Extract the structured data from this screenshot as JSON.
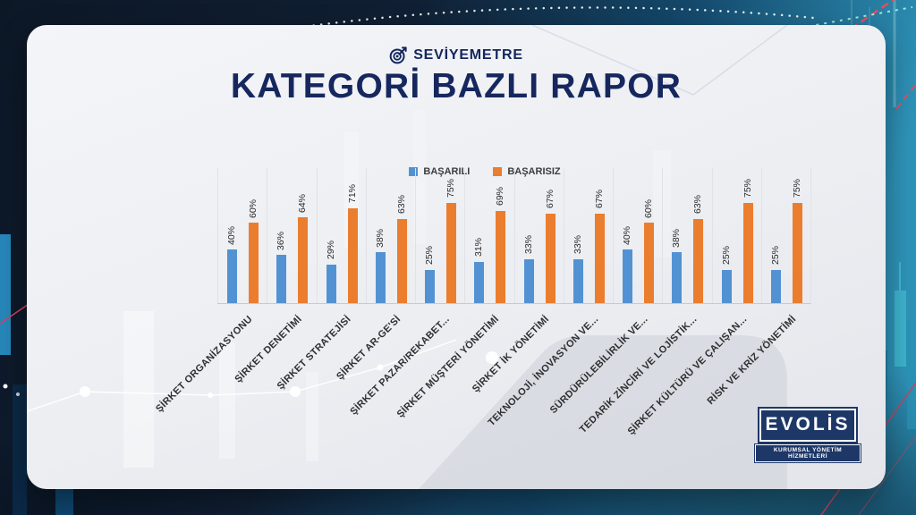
{
  "header": {
    "brand": "SEVİYEMETRE",
    "title": "KATEGORİ BAZLI RAPOR"
  },
  "chart_data": {
    "type": "bar",
    "title": "KATEGORİ BAZLI RAPOR",
    "categories": [
      "ŞİRKET ORGANİZASYONU",
      "ŞİRKET DENETİMİ",
      "ŞİRKET STRATEJİSİ",
      "ŞİRKET AR-GE'Sİ",
      "ŞİRKET PAZAR/REKABET...",
      "ŞİRKET MÜŞTERİ YÖNETİMİ",
      "ŞİRKET İK YÖNETİMİ",
      "TEKNOLOJİ, İNOVASYON VE...",
      "SÜRDÜRÜLEBİLİRLİK VE...",
      "TEDARİK ZİNCİRİ VE LOJİSTİK...",
      "ŞİRKET KÜLTÜRÜ VE ÇALIŞAN...",
      "RİSK VE KRİZ YÖNETİMİ"
    ],
    "series": [
      {
        "name": "BAŞARILI",
        "color": "#5292d3",
        "values": [
          40,
          36,
          29,
          38,
          25,
          31,
          33,
          33,
          40,
          38,
          25,
          25
        ]
      },
      {
        "name": "BAŞARISIZ",
        "color": "#eb7d2e",
        "values": [
          60,
          64,
          71,
          63,
          75,
          69,
          67,
          67,
          60,
          63,
          75,
          75
        ]
      }
    ],
    "value_suffix": "%",
    "ylim": [
      0,
      100
    ],
    "grid": "vertical-category-separators",
    "legend_position": "top",
    "value_labels": "rotated-90-above-bars",
    "category_labels": "rotated-45"
  },
  "logo": {
    "name": "EVOLİS",
    "tagline": "KURUMSAL YÖNETİM HİZMETLERİ"
  },
  "colors": {
    "title_navy": "#16275e",
    "bar_blue": "#5292d3",
    "bar_orange": "#eb7d2e",
    "card_bg": "#eef0f4",
    "bg_navy": "#0e1a2b",
    "bg_teal": "#2e93b8",
    "accent_red": "#e14e66"
  }
}
